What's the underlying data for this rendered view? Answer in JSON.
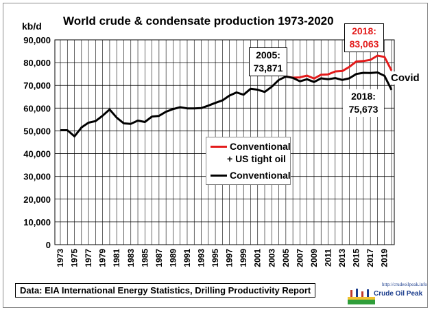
{
  "chart_data": {
    "type": "line",
    "title": "World crude & condensate production 1973-2020",
    "ylabel": "kb/d",
    "xlabel": "",
    "ylim": [
      0,
      90000
    ],
    "yticks": [
      0,
      10000,
      20000,
      30000,
      40000,
      50000,
      60000,
      70000,
      80000,
      90000
    ],
    "ytick_labels": [
      "0",
      "10,000",
      "20,000",
      "30,000",
      "40,000",
      "50,000",
      "60,000",
      "70,000",
      "80,000",
      "90,000"
    ],
    "xlim": [
      1973,
      2020
    ],
    "xtick_labels": [
      "1973",
      "1975",
      "1977",
      "1979",
      "1981",
      "1983",
      "1985",
      "1987",
      "1989",
      "1991",
      "1993",
      "1995",
      "1997",
      "1999",
      "2001",
      "2003",
      "2005",
      "2007",
      "2009",
      "2011",
      "2013",
      "2015",
      "2017",
      "2019"
    ],
    "grid": true,
    "legend_position": "center-right",
    "series": [
      {
        "name": "Conventional\n+ US tight oil",
        "color": "#e31b1b",
        "x": [
          2005,
          2006,
          2007,
          2008,
          2009,
          2010,
          2011,
          2012,
          2013,
          2014,
          2015,
          2016,
          2017,
          2018,
          2019,
          2020
        ],
        "values": [
          73871,
          73400,
          73500,
          74300,
          73000,
          74700,
          74800,
          76100,
          76300,
          78100,
          80500,
          80700,
          81200,
          83063,
          82500,
          76500
        ]
      },
      {
        "name": "Conventional",
        "color": "#000000",
        "x": [
          1973,
          1974,
          1975,
          1976,
          1977,
          1978,
          1979,
          1980,
          1981,
          1982,
          1983,
          1984,
          1985,
          1986,
          1987,
          1988,
          1989,
          1990,
          1991,
          1992,
          1993,
          1994,
          1995,
          1996,
          1997,
          1998,
          1999,
          2000,
          2001,
          2002,
          2003,
          2004,
          2005,
          2006,
          2007,
          2008,
          2009,
          2010,
          2011,
          2012,
          2013,
          2014,
          2015,
          2016,
          2017,
          2018,
          2019,
          2020
        ],
        "values": [
          50300,
          50300,
          47600,
          51500,
          53600,
          54300,
          56700,
          59400,
          55800,
          53300,
          53100,
          54500,
          53900,
          56300,
          56600,
          58400,
          59600,
          60400,
          59900,
          59900,
          60000,
          61100,
          62300,
          63400,
          65500,
          66900,
          65900,
          68500,
          68100,
          67100,
          69400,
          72400,
          73871,
          73300,
          71800,
          72700,
          71500,
          73100,
          72700,
          73200,
          72400,
          73100,
          75000,
          75500,
          75400,
          75673,
          74200,
          68000
        ]
      }
    ],
    "annotations": [
      {
        "id": "total2018",
        "lines": [
          "2018:",
          "83,063"
        ],
        "color": "#e31b1b"
      },
      {
        "id": "peak2005",
        "lines": [
          "2005:",
          "73,871"
        ],
        "color": "#000000"
      },
      {
        "id": "conv2018",
        "lines": [
          "2018:",
          "75,673"
        ],
        "color": "#000000"
      },
      {
        "id": "covid",
        "lines": [
          "Covid"
        ],
        "color": "#000000"
      }
    ]
  },
  "source_note": "Data: EIA International Energy Statistics, Drilling Productivity Report",
  "logo": {
    "url": "http://crudeoilpeak.info",
    "name": "Crude Oil Peak"
  }
}
